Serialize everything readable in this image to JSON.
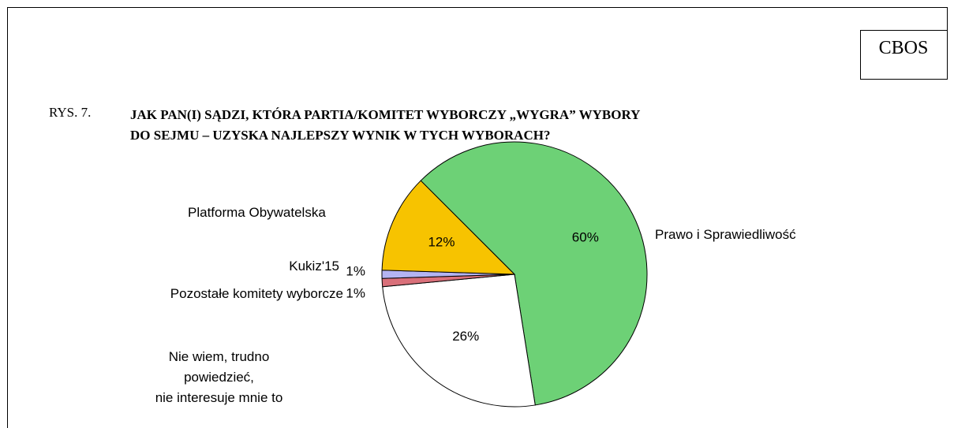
{
  "brand": "CBOS",
  "figure_label": "RYS. 7.",
  "chart_data": {
    "type": "pie",
    "title": "JAK PAN(I) SĄDZI, KTÓRA PARTIA/KOMITET WYBORCZY „WYGRA” WYBORY\nDO SEJMU – UZYSKA NAJLEPSZY WYNIK W TYCH WYBORACH?",
    "categories": [
      "Prawo i Sprawiedliwość",
      "Nie wiem, trudno powiedzieć,\nnie interesuje mnie to",
      "Pozostałe komitety wyborcze",
      "Kukiz'15",
      "Platforma Obywatelska"
    ],
    "values": [
      60,
      26,
      1,
      1,
      12
    ],
    "value_labels": [
      "60%",
      "26%",
      "1%",
      "1%",
      "12%"
    ],
    "colors": [
      "#6dd176",
      "#ffffff",
      "#d9707a",
      "#b4b4f2",
      "#f7c300"
    ]
  }
}
